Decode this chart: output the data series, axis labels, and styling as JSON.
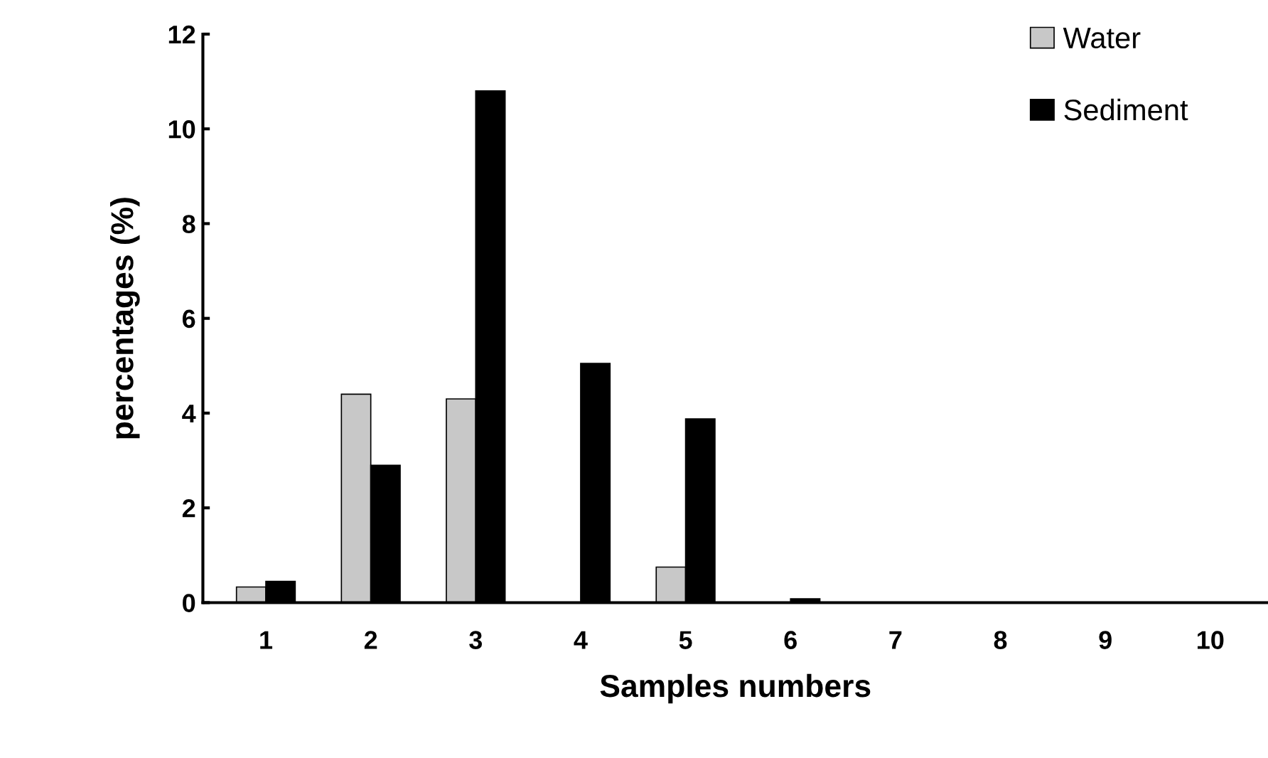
{
  "chart_data": {
    "type": "bar",
    "xlabel": "Samples numbers",
    "ylabel": "percentages (%)",
    "categories": [
      "1",
      "2",
      "3",
      "4",
      "5",
      "6",
      "7",
      "8",
      "9",
      "10"
    ],
    "series": [
      {
        "name": "Water",
        "color": "#c8c8c8",
        "values": [
          0.33,
          4.4,
          4.3,
          null,
          0.75,
          null,
          null,
          null,
          null,
          null
        ]
      },
      {
        "name": "Sediment",
        "color": "#000000",
        "values": [
          0.45,
          2.9,
          10.8,
          5.05,
          3.88,
          0.08,
          null,
          null,
          null,
          null
        ]
      }
    ],
    "ylim": [
      0,
      12
    ],
    "yticks": [
      0,
      2,
      4,
      6,
      8,
      10,
      12
    ],
    "grid": false,
    "legend": "top right"
  }
}
